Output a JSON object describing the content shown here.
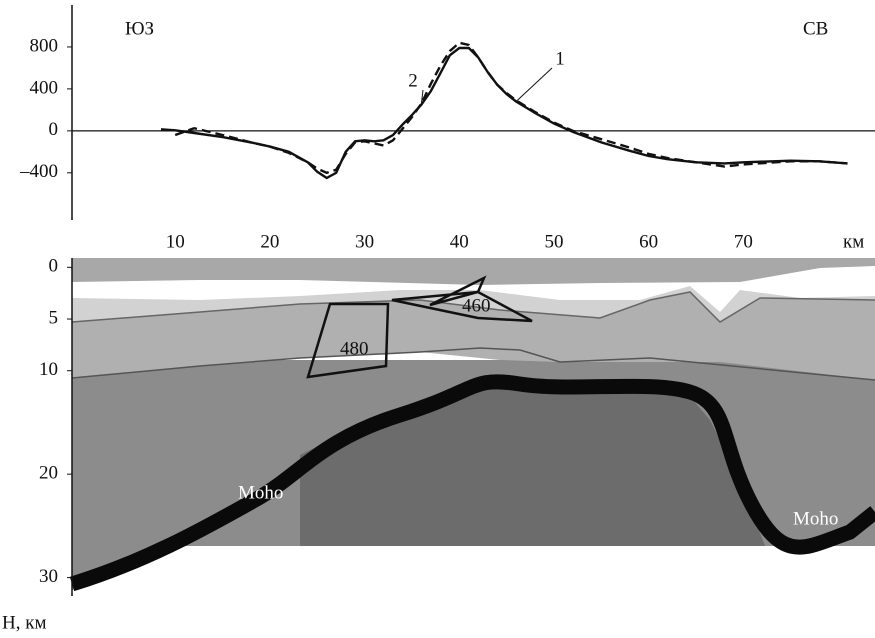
{
  "chart_data": [
    {
      "type": "line",
      "annotations": [
        "ЮЗ",
        "СВ"
      ],
      "xlabel": "км",
      "x": [
        8.5,
        10,
        12,
        15,
        18,
        20,
        22,
        24,
        25,
        26,
        27,
        28,
        29,
        30,
        31,
        32,
        33,
        34,
        35,
        36,
        37,
        38,
        39,
        40,
        41,
        42,
        43,
        44,
        45,
        46,
        48,
        50,
        52,
        55,
        58,
        60,
        62,
        65,
        68,
        70,
        75,
        78,
        81
      ],
      "series": [
        {
          "name": "1",
          "color": "#111111",
          "dash": false,
          "values": [
            15,
            5,
            -20,
            -60,
            -110,
            -150,
            -200,
            -300,
            -390,
            -450,
            -400,
            -200,
            -100,
            -90,
            -100,
            -90,
            -40,
            60,
            150,
            250,
            380,
            550,
            720,
            790,
            790,
            700,
            560,
            440,
            350,
            280,
            170,
            70,
            -10,
            -110,
            -190,
            -240,
            -270,
            -300,
            -310,
            -300,
            -285,
            -290,
            -310
          ]
        },
        {
          "name": "2",
          "color": "#111111",
          "dash": true,
          "values": [
            null,
            -40,
            25,
            -40,
            -110,
            -150,
            -210,
            -300,
            -360,
            -400,
            -370,
            -220,
            -110,
            -100,
            -120,
            -140,
            -90,
            20,
            130,
            260,
            450,
            620,
            760,
            840,
            820,
            700,
            560,
            440,
            360,
            290,
            180,
            80,
            0,
            -80,
            -160,
            -220,
            -260,
            -300,
            -340,
            -320,
            -290,
            -290,
            -310
          ]
        }
      ],
      "xlim": [
        -0.9,
        83.9
      ],
      "xticks": [
        10,
        20,
        30,
        40,
        50,
        60,
        70
      ],
      "ylim": [
        -850,
        1200
      ],
      "yticks": [
        {
          "value": -400,
          "label": "–400"
        },
        0,
        400,
        800
      ]
    },
    {
      "type": "section",
      "ylabel": "H, км",
      "ylim": [
        -0.9,
        31.2
      ],
      "yticks": [
        0,
        5,
        10,
        20,
        30
      ],
      "labels": [
        "480",
        "460",
        "Moho",
        "Moho"
      ]
    }
  ]
}
